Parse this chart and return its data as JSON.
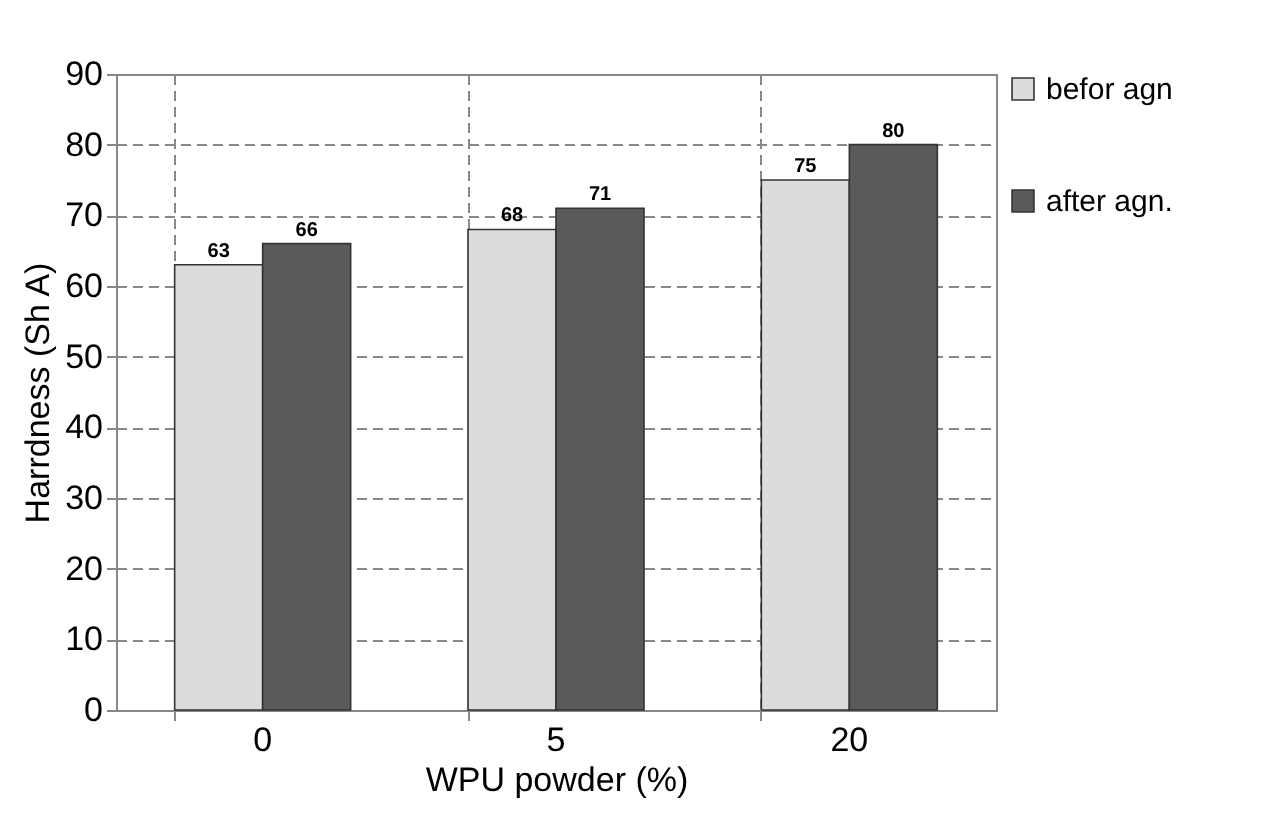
{
  "chart_data": {
    "type": "bar",
    "xlabel": "WPU powder (%)",
    "ylabel": "Harrdness (Sh A)",
    "categories": [
      "0",
      "5",
      "20"
    ],
    "series": [
      {
        "name": "befor agn",
        "color": "#dcdcdc",
        "values": [
          63,
          68,
          75
        ]
      },
      {
        "name": "after agn.",
        "color": "#5a5a5a",
        "values": [
          66,
          71,
          80
        ]
      }
    ],
    "ylim": [
      0,
      90
    ],
    "yticks": [
      0,
      10,
      20,
      30,
      40,
      50,
      60,
      70,
      80,
      90
    ],
    "grid": true,
    "legend": "right",
    "data_labels": true
  }
}
